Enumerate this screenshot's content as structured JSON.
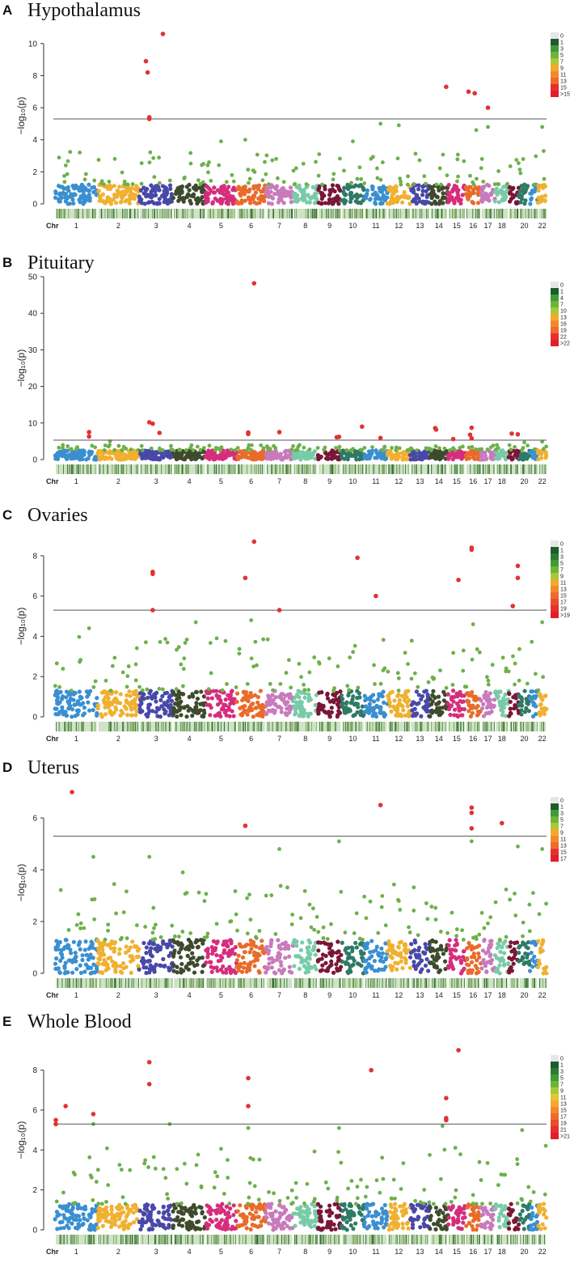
{
  "ylabel": "−log₁₀(p)",
  "chr_label": "Chr",
  "chromosomes": [
    "1",
    "2",
    "3",
    "4",
    "5",
    "6",
    "7",
    "8",
    "9",
    "10",
    "11",
    "12",
    "13",
    "14",
    "15",
    "16",
    "17",
    "18",
    "19",
    "20",
    "21",
    "22"
  ],
  "chromosome_tick_labels": [
    "1",
    "2",
    "3",
    "4",
    "5",
    "6",
    "7",
    "8",
    "9",
    "10",
    "11",
    "12",
    "13",
    "14",
    "15",
    "16",
    "17",
    "18",
    "",
    "20",
    "",
    "22"
  ],
  "chromosome_colors": [
    "#3a8fd0",
    "#f0b030",
    "#4848a8",
    "#3e4a2c",
    "#d62d7c",
    "#e96b2a",
    "#c87abb",
    "#79cba8",
    "#7a1636",
    "#2e7a66",
    "#3a8fd0",
    "#f0b030",
    "#4848a8",
    "#3e4a2c",
    "#d62d7c",
    "#e96b2a",
    "#c87abb",
    "#79cba8",
    "#7a1636",
    "#2e7a66",
    "#3a8fd0",
    "#f0b030"
  ],
  "colors": {
    "mid_points": "#6db04a",
    "significant_points": "#e23232",
    "threshold_line": "#555555"
  },
  "panels": [
    {
      "letter": "A",
      "title": "Hypothalamus",
      "chart_data": {
        "type": "scatter",
        "title": "Hypothalamus",
        "ylabel": "−log₁₀(p)",
        "ylim": [
          0,
          11
        ],
        "yticks": [
          0,
          2,
          4,
          6,
          8,
          10
        ],
        "threshold": 5.3,
        "legend": [
          "0",
          "1",
          "3",
          "5",
          "7",
          "9",
          "11",
          "13",
          "15",
          ">15"
        ],
        "legend_position": "right",
        "significant_points": [
          {
            "chr": "3",
            "pos": 0.2,
            "y": 8.9
          },
          {
            "chr": "3",
            "pos": 0.25,
            "y": 8.2
          },
          {
            "chr": "3",
            "pos": 0.3,
            "y": 5.4
          },
          {
            "chr": "3",
            "pos": 0.3,
            "y": 5.3
          },
          {
            "chr": "3",
            "pos": 0.7,
            "y": 10.6
          },
          {
            "chr": "14",
            "pos": 0.9,
            "y": 7.3
          },
          {
            "chr": "16",
            "pos": 0.2,
            "y": 7.0
          },
          {
            "chr": "16",
            "pos": 0.6,
            "y": 6.9
          },
          {
            "chr": "17",
            "pos": 0.5,
            "y": 6.0
          }
        ],
        "peak_points": [
          {
            "chr": "11",
            "pos": 0.7,
            "y": 5.0
          },
          {
            "chr": "12",
            "pos": 0.5,
            "y": 4.9
          },
          {
            "chr": "16",
            "pos": 0.7,
            "y": 4.6
          },
          {
            "chr": "17",
            "pos": 0.5,
            "y": 4.8
          },
          {
            "chr": "22",
            "pos": 0.5,
            "y": 4.8
          },
          {
            "chr": "10",
            "pos": 0.5,
            "y": 3.9
          },
          {
            "chr": "5",
            "pos": 0.5,
            "y": 3.9
          },
          {
            "chr": "6",
            "pos": 0.3,
            "y": 4.0
          }
        ],
        "noise_max": 3.3,
        "body_max": 1.2
      }
    },
    {
      "letter": "B",
      "title": "Pituitary",
      "chart_data": {
        "type": "scatter",
        "title": "Pituitary",
        "ylabel": "−log₁₀(p)",
        "ylim": [
          0,
          50
        ],
        "yticks": [
          0,
          10,
          20,
          30,
          40,
          50
        ],
        "threshold": 5.3,
        "legend": [
          "0",
          "1",
          "4",
          "7",
          "10",
          "13",
          "16",
          "19",
          "22",
          ">22"
        ],
        "legend_position": "right",
        "significant_points": [
          {
            "chr": "1",
            "pos": 0.8,
            "y": 7.5
          },
          {
            "chr": "1",
            "pos": 0.8,
            "y": 6.3
          },
          {
            "chr": "3",
            "pos": 0.3,
            "y": 10.2
          },
          {
            "chr": "3",
            "pos": 0.4,
            "y": 9.8
          },
          {
            "chr": "3",
            "pos": 0.6,
            "y": 7.3
          },
          {
            "chr": "6",
            "pos": 0.4,
            "y": 7.4
          },
          {
            "chr": "6",
            "pos": 0.4,
            "y": 7.0
          },
          {
            "chr": "6",
            "pos": 0.6,
            "y": 48.2
          },
          {
            "chr": "7",
            "pos": 0.5,
            "y": 7.5
          },
          {
            "chr": "9",
            "pos": 0.8,
            "y": 6.1
          },
          {
            "chr": "9",
            "pos": 0.9,
            "y": 6.2
          },
          {
            "chr": "10",
            "pos": 0.9,
            "y": 9.0
          },
          {
            "chr": "11",
            "pos": 0.7,
            "y": 5.9
          },
          {
            "chr": "14",
            "pos": 0.3,
            "y": 8.6
          },
          {
            "chr": "14",
            "pos": 0.35,
            "y": 8.2
          },
          {
            "chr": "15",
            "pos": 0.3,
            "y": 5.6
          },
          {
            "chr": "16",
            "pos": 0.3,
            "y": 6.8
          },
          {
            "chr": "16",
            "pos": 0.4,
            "y": 8.7
          },
          {
            "chr": "16",
            "pos": 0.4,
            "y": 5.8
          },
          {
            "chr": "19",
            "pos": 0.3,
            "y": 7.1
          },
          {
            "chr": "19",
            "pos": 0.9,
            "y": 6.9
          }
        ],
        "peak_points": [
          {
            "chr": "2",
            "pos": 0.3,
            "y": 5.0
          },
          {
            "chr": "20",
            "pos": 0.5,
            "y": 4.7
          },
          {
            "chr": "22",
            "pos": 0.5,
            "y": 4.9
          }
        ],
        "noise_max": 4.0,
        "body_max": 2.5
      }
    },
    {
      "letter": "C",
      "title": "Ovaries",
      "chart_data": {
        "type": "scatter",
        "title": "Ovaries",
        "ylabel": "−log₁₀(p)",
        "ylim": [
          0,
          9
        ],
        "yticks": [
          0,
          2,
          4,
          6,
          8
        ],
        "threshold": 5.3,
        "legend": [
          "0",
          "1",
          "3",
          "5",
          "7",
          "9",
          "11",
          "13",
          "15",
          "17",
          "19",
          ">19"
        ],
        "legend_position": "right",
        "significant_points": [
          {
            "chr": "3",
            "pos": 0.4,
            "y": 7.2
          },
          {
            "chr": "3",
            "pos": 0.4,
            "y": 7.1
          },
          {
            "chr": "3",
            "pos": 0.4,
            "y": 5.3
          },
          {
            "chr": "6",
            "pos": 0.3,
            "y": 6.9
          },
          {
            "chr": "6",
            "pos": 0.6,
            "y": 8.7
          },
          {
            "chr": "7",
            "pos": 0.5,
            "y": 5.3
          },
          {
            "chr": "10",
            "pos": 0.7,
            "y": 7.9
          },
          {
            "chr": "11",
            "pos": 0.5,
            "y": 6.0
          },
          {
            "chr": "15",
            "pos": 0.6,
            "y": 6.8
          },
          {
            "chr": "16",
            "pos": 0.4,
            "y": 8.4
          },
          {
            "chr": "16",
            "pos": 0.4,
            "y": 8.3
          },
          {
            "chr": "19",
            "pos": 0.4,
            "y": 5.5
          },
          {
            "chr": "19",
            "pos": 0.9,
            "y": 7.5
          },
          {
            "chr": "19",
            "pos": 0.9,
            "y": 6.9
          }
        ],
        "peak_points": [
          {
            "chr": "6",
            "pos": 0.5,
            "y": 4.8
          },
          {
            "chr": "4",
            "pos": 0.7,
            "y": 4.7
          },
          {
            "chr": "22",
            "pos": 0.5,
            "y": 4.7
          },
          {
            "chr": "16",
            "pos": 0.5,
            "y": 4.6
          },
          {
            "chr": "1",
            "pos": 0.8,
            "y": 4.4
          }
        ],
        "noise_max": 4.0,
        "body_max": 1.3
      }
    },
    {
      "letter": "D",
      "title": "Uterus",
      "chart_data": {
        "type": "scatter",
        "title": "Uterus",
        "ylabel": "−log₁₀(p)",
        "ylim": [
          0,
          7
        ],
        "yticks": [
          0,
          2,
          4,
          6
        ],
        "threshold": 5.3,
        "legend": [
          "0",
          "1",
          "3",
          "5",
          "7",
          "9",
          "11",
          "13",
          "15",
          "17"
        ],
        "legend_position": "right",
        "significant_points": [
          {
            "chr": "1",
            "pos": 0.4,
            "y": 7.0
          },
          {
            "chr": "6",
            "pos": 0.3,
            "y": 5.7
          },
          {
            "chr": "11",
            "pos": 0.7,
            "y": 6.5
          },
          {
            "chr": "16",
            "pos": 0.4,
            "y": 6.4
          },
          {
            "chr": "16",
            "pos": 0.4,
            "y": 6.2
          },
          {
            "chr": "16",
            "pos": 0.4,
            "y": 5.6
          },
          {
            "chr": "18",
            "pos": 0.5,
            "y": 5.8
          }
        ],
        "peak_points": [
          {
            "chr": "1",
            "pos": 0.9,
            "y": 4.5
          },
          {
            "chr": "3",
            "pos": 0.3,
            "y": 4.5
          },
          {
            "chr": "7",
            "pos": 0.5,
            "y": 4.8
          },
          {
            "chr": "9",
            "pos": 0.9,
            "y": 5.1
          },
          {
            "chr": "16",
            "pos": 0.4,
            "y": 5.1
          },
          {
            "chr": "19",
            "pos": 0.9,
            "y": 4.9
          },
          {
            "chr": "22",
            "pos": 0.5,
            "y": 4.8
          },
          {
            "chr": "4",
            "pos": 0.3,
            "y": 3.9
          }
        ],
        "noise_max": 3.5,
        "body_max": 1.3
      }
    },
    {
      "letter": "E",
      "title": "Whole Blood",
      "chart_data": {
        "type": "scatter",
        "title": "Whole Blood",
        "ylabel": "−log₁₀(p)",
        "ylim": [
          0,
          9
        ],
        "yticks": [
          0,
          2,
          4,
          6,
          8
        ],
        "threshold": 5.3,
        "legend": [
          "0",
          "1",
          "3",
          "5",
          "7",
          "9",
          "11",
          "13",
          "15",
          "17",
          "19",
          "21",
          ">21"
        ],
        "legend_position": "right",
        "significant_points": [
          {
            "chr": "1",
            "pos": 0.02,
            "y": 5.5
          },
          {
            "chr": "1",
            "pos": 0.02,
            "y": 5.3
          },
          {
            "chr": "1",
            "pos": 0.25,
            "y": 6.2
          },
          {
            "chr": "1",
            "pos": 0.9,
            "y": 5.8
          },
          {
            "chr": "3",
            "pos": 0.3,
            "y": 8.4
          },
          {
            "chr": "3",
            "pos": 0.3,
            "y": 7.3
          },
          {
            "chr": "6",
            "pos": 0.4,
            "y": 7.6
          },
          {
            "chr": "6",
            "pos": 0.4,
            "y": 6.2
          },
          {
            "chr": "11",
            "pos": 0.3,
            "y": 8.0
          },
          {
            "chr": "14",
            "pos": 0.9,
            "y": 6.6
          },
          {
            "chr": "14",
            "pos": 0.9,
            "y": 5.6
          },
          {
            "chr": "14",
            "pos": 0.9,
            "y": 5.5
          },
          {
            "chr": "15",
            "pos": 0.6,
            "y": 9.0
          }
        ],
        "peak_points": [
          {
            "chr": "1",
            "pos": 0.9,
            "y": 5.3
          },
          {
            "chr": "3",
            "pos": 0.9,
            "y": 5.3
          },
          {
            "chr": "6",
            "pos": 0.4,
            "y": 5.1
          },
          {
            "chr": "9",
            "pos": 0.9,
            "y": 5.1
          },
          {
            "chr": "14",
            "pos": 0.7,
            "y": 5.2
          },
          {
            "chr": "20",
            "pos": 0.3,
            "y": 5.0
          }
        ],
        "noise_max": 4.3,
        "body_max": 1.3
      }
    }
  ]
}
